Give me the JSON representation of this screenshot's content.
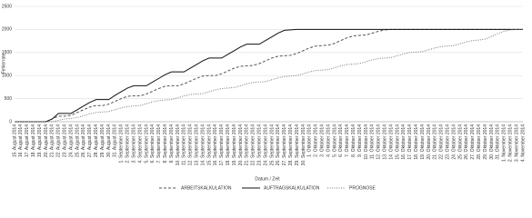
{
  "chart_data": {
    "type": "line",
    "y_label": "Fehlerrate",
    "x_label": "Datum / Zeit",
    "ylim": [
      0,
      2500
    ],
    "yticks": [
      0,
      500,
      1000,
      1500,
      2000,
      2500
    ],
    "grid": true,
    "categories": [
      "15. August 2014",
      "16. August 2014",
      "17. August 2014",
      "18. August 2014",
      "19. August 2014",
      "20. August 2014",
      "21. August 2014",
      "22. August 2014",
      "23. August 2014",
      "24. August 2014",
      "25. August 2014",
      "26. August 2014",
      "27. August 2014",
      "28. August 2014",
      "29. August 2014",
      "30. August 2014",
      "31. August 2014",
      "1. September 2014",
      "2. September 2014",
      "3. September 2014",
      "4. September 2014",
      "5. September 2014",
      "6. September 2014",
      "7. September 2014",
      "8. September 2014",
      "9. September 2014",
      "10. September 2014",
      "11. September 2014",
      "12. September 2014",
      "13. September 2014",
      "14. September 2014",
      "15. September 2014",
      "16. September 2014",
      "17. September 2014",
      "18. September 2014",
      "19. September 2014",
      "20. September 2014",
      "21. September 2014",
      "22. September 2014",
      "23. September 2014",
      "24. September 2014",
      "25. September 2014",
      "26. September 2014",
      "27. September 2014",
      "28. September 2014",
      "29. September 2014",
      "30. September 2014",
      "1. Oktober 2014",
      "2. Oktober 2014",
      "3. Oktober 2014",
      "4. Oktober 2014",
      "5. Oktober 2014",
      "6. Oktober 2014",
      "7. Oktober 2014",
      "8. Oktober 2014",
      "9. Oktober 2014",
      "10. Oktober 2014",
      "11. Oktober 2014",
      "12. Oktober 2014",
      "13. Oktober 2014",
      "14. Oktober 2014",
      "15. Oktober 2014",
      "16. Oktober 2014",
      "17. Oktober 2014",
      "18. Oktober 2014",
      "19. Oktober 2014",
      "20. Oktober 2014",
      "21. Oktober 2014",
      "22. Oktober 2014",
      "23. Oktober 2014",
      "24. Oktober 2014",
      "25. Oktober 2014",
      "26. Oktober 2014",
      "27. Oktober 2014",
      "28. Oktober 2014",
      "29. Oktober 2014",
      "30. Oktober 2014",
      "31. Oktober 2014",
      "1. November 2014",
      "2. November 2014",
      "3. November 2014",
      "4. November 2014"
    ],
    "series": [
      {
        "name": "ARBEITSKALKULATION",
        "color": "#555555",
        "dash": "3,2",
        "values": [
          0,
          0,
          0,
          0,
          0,
          0,
          60,
          120,
          120,
          140,
          200,
          260,
          320,
          350,
          350,
          380,
          440,
          500,
          550,
          560,
          560,
          600,
          660,
          720,
          770,
          780,
          780,
          820,
          880,
          940,
          990,
          1000,
          1000,
          1040,
          1100,
          1160,
          1200,
          1210,
          1220,
          1260,
          1320,
          1380,
          1420,
          1430,
          1440,
          1480,
          1540,
          1600,
          1640,
          1650,
          1660,
          1700,
          1760,
          1820,
          1860,
          1870,
          1880,
          1920,
          1960,
          1990,
          2000,
          2000,
          2000,
          2000,
          2000,
          2000,
          2000,
          2000,
          2000,
          2000,
          2000,
          2000,
          2000,
          2000,
          2000,
          2000,
          2000,
          2000,
          2000,
          2000,
          2000,
          2000
        ]
      },
      {
        "name": "AUFTRAGSKALKULATION",
        "color": "#111111",
        "dash": "none",
        "values": [
          0,
          0,
          0,
          0,
          0,
          0,
          60,
          180,
          180,
          180,
          260,
          340,
          420,
          480,
          480,
          480,
          570,
          650,
          730,
          780,
          780,
          780,
          860,
          940,
          1020,
          1080,
          1080,
          1080,
          1160,
          1240,
          1320,
          1380,
          1380,
          1380,
          1460,
          1540,
          1620,
          1680,
          1680,
          1680,
          1760,
          1840,
          1920,
          1980,
          1990,
          2000,
          2000,
          2000,
          2000,
          2000,
          2000,
          2000,
          2000,
          2000,
          2000,
          2000,
          2000,
          2000,
          2000,
          2000,
          2000,
          2000,
          2000,
          2000,
          2000,
          2000,
          2000,
          2000,
          2000,
          2000,
          2000,
          2000,
          2000,
          2000,
          2000,
          2000,
          2000,
          2000,
          2000,
          2000,
          2000,
          2000
        ]
      },
      {
        "name": "PROGNOSE",
        "color": "#777777",
        "dash": "1,1.5",
        "values": [
          0,
          0,
          0,
          0,
          0,
          0,
          0,
          30,
          60,
          70,
          90,
          130,
          170,
          200,
          210,
          220,
          260,
          300,
          330,
          340,
          350,
          390,
          430,
          460,
          470,
          480,
          520,
          560,
          590,
          600,
          610,
          650,
          690,
          720,
          730,
          740,
          780,
          820,
          850,
          860,
          870,
          910,
          950,
          980,
          990,
          1000,
          1040,
          1080,
          1110,
          1120,
          1130,
          1170,
          1210,
          1240,
          1250,
          1260,
          1300,
          1340,
          1370,
          1380,
          1390,
          1430,
          1470,
          1500,
          1510,
          1520,
          1560,
          1600,
          1630,
          1640,
          1650,
          1690,
          1730,
          1760,
          1770,
          1790,
          1850,
          1910,
          1960,
          1990,
          2000,
          2000
        ]
      }
    ]
  }
}
